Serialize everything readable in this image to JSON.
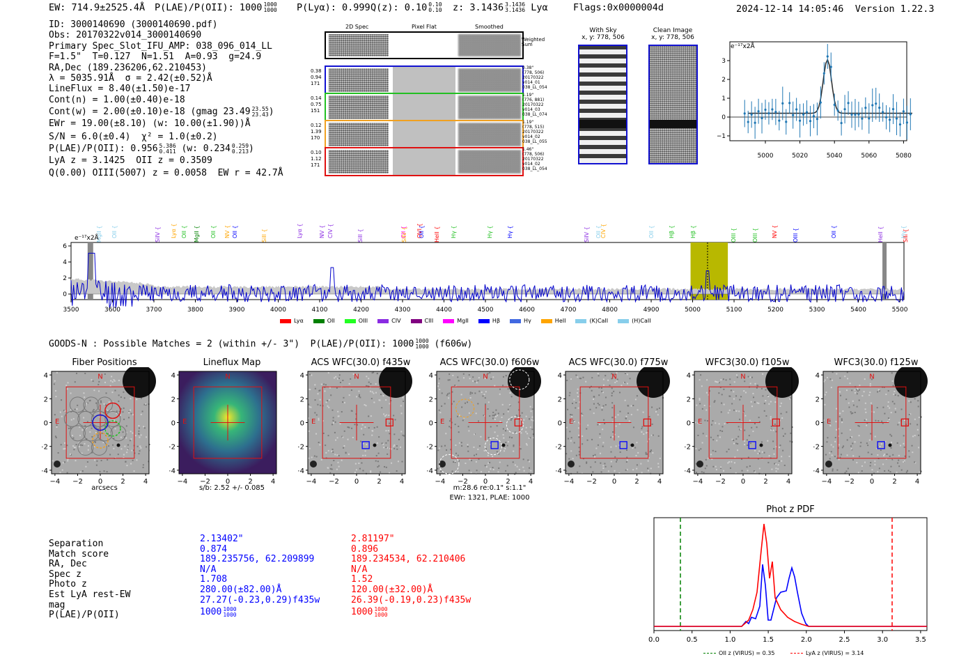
{
  "header": {
    "ew": "EW: 714.9±2525.4Å",
    "plae": "P(LAE)/P(OII): 1000",
    "plae_sup": "1000",
    "plae_sub": "1000",
    "plya": "P(Lyα): 0.999",
    "qz": "Q(z): 0.10",
    "qz_sup": "0.10",
    "qz_sub": "0.10",
    "z": "z: 3.1436",
    "z_sup": "3.1436",
    "z_sub": "3.1436",
    "line": "Lyα",
    "flags": "Flags:0x0000004d",
    "timestamp": "2024-12-14 14:05:46",
    "version": "Version 1.22.3"
  },
  "info": {
    "l1": "ID: 3000140690 (3000140690.pdf)",
    "l2": "Obs: 20170322v014_3000140690",
    "l3": "Primary Spec_Slot_IFU_AMP: 038_096_014_LL",
    "l4": "F=1.5\"  T=0.127  N=1.51  A=0.93  g=24.9",
    "l5": "RA,Dec (189.236206,62.210453)",
    "l6": "λ = 5035.91Å  σ = 2.42(±0.52)Å",
    "l7": "LineFlux = 8.40(±1.50)e-17",
    "l8": "Cont(n) = 1.00(±0.40)e-18",
    "l9": "Cont(w) = 2.00(±0.10)e-18 (gmag 23.49",
    "l9_sup": "23.55",
    "l9_sub": "23.43",
    "l10": "EWr = 19.00(±8.10) (w: 10.00(±1.90))Å",
    "l11": "S/N = 6.0(±0.4)  χ² = 1.0(±0.2)",
    "l12": "P(LAE)/P(OII): 0.956",
    "l12_sup": "5.386",
    "l12_sub": "0.411",
    "l12b": "(w: 0.234",
    "l12b_sup": "0.259",
    "l12b_sub": "0.213",
    "l13": "LyA z = 3.1425  OII z = 0.3509",
    "l14": "Q(0.00) OIII(5007) z = 0.0058  EW r = 42.7Å"
  },
  "cutouts": {
    "col1": "2D Spec",
    "col2": "Pixel Flat",
    "col3": "Smoothed",
    "weighted_sum": "Weighted Sum",
    "rows": [
      {
        "l1": "0.38",
        "l2": "0.94",
        "l3": "171",
        "r1": "0.38\"",
        "r2": "(778, 506)",
        "r3": "20170322",
        "r4": "v014_01",
        "r5": "038_LL_054",
        "color": "#1010d0"
      },
      {
        "l1": "0.14",
        "l2": "0.75",
        "l3": "151",
        "r1": "1.19\"",
        "r2": "(776, 881)",
        "r3": "20170322",
        "r4": "v014_03",
        "r5": "038_LL_074",
        "color": "#22c022"
      },
      {
        "l1": "0.12",
        "l2": "1.39",
        "l3": "170",
        "r1": "1.19\"",
        "r2": "(778, 515)",
        "r3": "20170322",
        "r4": "v014_02",
        "r5": "038_LL_055",
        "color": "#f0a020"
      },
      {
        "l1": "0.10",
        "l2": "1.12",
        "l3": "171",
        "r1": "1.46\"",
        "r2": "(778, 506)",
        "r3": "20170322",
        "r4": "v014_02",
        "r5": "038_LL_054",
        "color": "#e01010"
      }
    ]
  },
  "sky": {
    "with_sky": "With Sky",
    "with_sky_xy": "x, y: 778, 506",
    "clean": "Clean Image",
    "clean_xy": "x, y: 778, 506"
  },
  "zoom_plot": {
    "unit": "e⁻¹⁷x2Å",
    "yticks": [
      "3",
      "2",
      "1",
      "0",
      "−1"
    ],
    "xticks": [
      "5000",
      "5020",
      "5040",
      "5060",
      "5080"
    ]
  },
  "full_spec": {
    "unit": "e⁻¹⁷x2Å",
    "yticks": [
      "6",
      "4",
      "2",
      "0"
    ],
    "xticks": [
      "3500",
      "3600",
      "3700",
      "3800",
      "3900",
      "4000",
      "4100",
      "4200",
      "4300",
      "4400",
      "4500",
      "4600",
      "4700",
      "4800",
      "4900",
      "5000",
      "5100",
      "5200",
      "5300",
      "5400",
      "5500"
    ],
    "line_labels": [
      {
        "t": "MgII",
        "c": "#87ceeb"
      },
      {
        "t": "OII",
        "c": "#87ceeb"
      },
      {
        "t": "SiIV",
        "c": "#8a2be2"
      },
      {
        "t": "Lyα",
        "c": "#ffa500"
      },
      {
        "t": "OII",
        "c": "#22c022"
      },
      {
        "t": "MgII",
        "c": "#008000"
      },
      {
        "t": "OII",
        "c": "#22c022"
      },
      {
        "t": "NV",
        "c": "#ffa500"
      },
      {
        "t": "OII",
        "c": "#0000ff"
      },
      {
        "t": "SiII",
        "c": "#ffa500"
      },
      {
        "t": "Lyα",
        "c": "#8a2be2"
      },
      {
        "t": "NV",
        "c": "#8a2be2"
      },
      {
        "t": "CIV",
        "c": "#8a2be2"
      },
      {
        "t": "SiII",
        "c": "#8a2be2"
      },
      {
        "t": "CII",
        "c": "#ff00ff"
      },
      {
        "t": "SiIV",
        "c": "#ffa500"
      },
      {
        "t": "OVI",
        "c": "#ff0000"
      },
      {
        "t": "OII",
        "c": "#0000ff"
      },
      {
        "t": "HeII",
        "c": "#ff0000"
      },
      {
        "t": "Hγ",
        "c": "#22c022"
      },
      {
        "t": "Hγ",
        "c": "#22c022"
      },
      {
        "t": "Hγ",
        "c": "#0000ff"
      },
      {
        "t": "SiIV",
        "c": "#8a2be2"
      },
      {
        "t": "OII",
        "c": "#87ceeb"
      },
      {
        "t": "CIV",
        "c": "#ffa500"
      },
      {
        "t": "OII",
        "c": "#87ceeb"
      },
      {
        "t": "Hβ",
        "c": "#22c022"
      },
      {
        "t": "Hβ",
        "c": "#22c022"
      },
      {
        "t": "OIII",
        "c": "#22c022"
      },
      {
        "t": "OIII",
        "c": "#22c022"
      },
      {
        "t": "NV",
        "c": "#ff0000"
      },
      {
        "t": "OIII",
        "c": "#0000ff"
      },
      {
        "t": "OII",
        "c": "#0000ff"
      },
      {
        "t": "SiII",
        "c": "#ff0000"
      },
      {
        "t": "HeII",
        "c": "#8a2be2"
      },
      {
        "t": "Hγ",
        "c": "#87ceeb"
      }
    ],
    "legend": [
      {
        "t": "Lyα",
        "c": "#ff0000"
      },
      {
        "t": "OII",
        "c": "#008000"
      },
      {
        "t": "OIII",
        "c": "#22ff22"
      },
      {
        "t": "CIV",
        "c": "#8a2be2"
      },
      {
        "t": "CIII",
        "c": "#800080"
      },
      {
        "t": "MgII",
        "c": "#ff00ff"
      },
      {
        "t": "Hβ",
        "c": "#0000ff"
      },
      {
        "t": "Hγ",
        "c": "#4169e1"
      },
      {
        "t": "HeII",
        "c": "#ffa500"
      },
      {
        "t": "(K)CaII",
        "c": "#87ceeb"
      },
      {
        "t": "(H)CaII",
        "c": "#87ceeb"
      }
    ]
  },
  "matches": {
    "title": "GOODS-N : Possible Matches = 2 (within +/- 3\")  P(LAE)/P(OII): 1000",
    "title_sup": "1000",
    "title_sub": "1000",
    "title_tail": "(f606w)"
  },
  "imaging": {
    "panels": [
      {
        "title": "Fiber Positions",
        "caption": "arcsecs"
      },
      {
        "title": "Lineflux Map",
        "caption": "s/b: 2.52 +/- 0.085"
      },
      {
        "title": "ACS WFC(30.0) f435w",
        "caption": ""
      },
      {
        "title": "ACS WFC(30.0) f606w",
        "caption": "m:28.6  re:0.1\"  s:1.1\"",
        "caption2": "EWr: 1321, PLAE: 1000"
      },
      {
        "title": "ACS WFC(30.0) f775w",
        "caption": ""
      },
      {
        "title": "WFC3(30.0) f105w",
        "caption": ""
      },
      {
        "title": "WFC3(30.0) f125w",
        "caption": ""
      }
    ],
    "yticks": [
      "4",
      "2",
      "0",
      "−2",
      "−4"
    ],
    "xticks": [
      "−4",
      "−2",
      "0",
      "2",
      "4"
    ],
    "north": "N",
    "east": "E"
  },
  "match_table": {
    "labels": [
      "Separation",
      "Match score",
      "RA, Dec",
      "Spec z",
      "Photo z",
      "Est LyA rest-EW",
      "mag",
      "P(LAE)/P(OII)"
    ],
    "blue": [
      "2.13402\"",
      "0.874",
      "189.235756, 62.209899",
      "N/A",
      "1.708",
      "280.00(±82.00)Å",
      "27.27(-0.23,0.29)f435w",
      "1000"
    ],
    "red": [
      "2.81197\"",
      "0.896",
      "189.234534, 62.210406",
      "N/A",
      "1.52",
      "120.00(±32.00)Å",
      "26.39(-0.19,0.23)f435w",
      "1000"
    ],
    "blue_sup": "1000",
    "blue_sub": "1000",
    "red_sup": "1000",
    "red_sub": "1000"
  },
  "photz": {
    "title": "Phot z PDF",
    "xticks": [
      "0.0",
      "0.5",
      "1.0",
      "1.5",
      "2.0",
      "2.5",
      "3.0",
      "3.5"
    ],
    "legend_oii": "OII z (VIRUS) = 0.35",
    "legend_lya": "LyA z (VIRUS) = 3.14"
  }
}
